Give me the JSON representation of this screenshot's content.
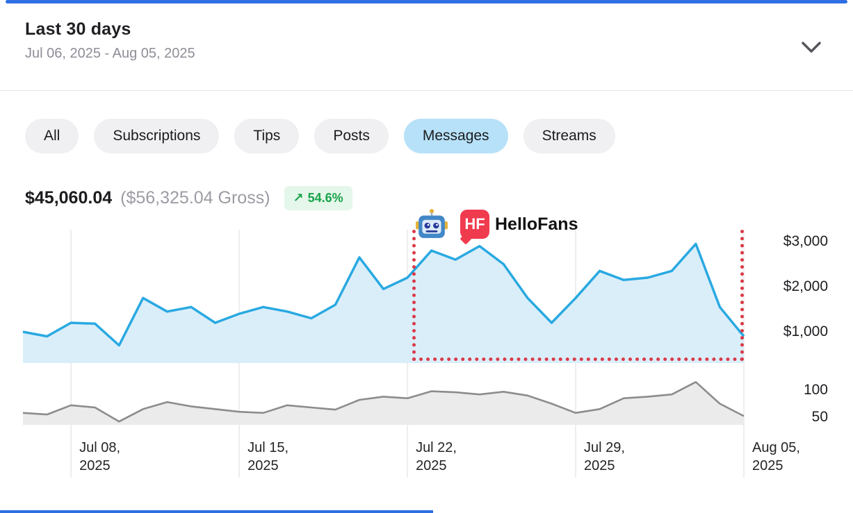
{
  "accent": {
    "top_bar_color": "#2e6fe3",
    "bottom_bar_color": "#2e6fe3"
  },
  "header": {
    "title": "Last 30 days",
    "date_range": "Jul 06, 2025 - Aug 05, 2025"
  },
  "filters": [
    {
      "label": "All",
      "active": false
    },
    {
      "label": "Subscriptions",
      "active": false
    },
    {
      "label": "Tips",
      "active": false
    },
    {
      "label": "Posts",
      "active": false
    },
    {
      "label": "Messages",
      "active": true
    },
    {
      "label": "Streams",
      "active": false
    }
  ],
  "summary": {
    "net_amount": "$45,060.04",
    "gross_amount": "($56,325.04 Gross)",
    "trend": {
      "arrow": "↗",
      "value": "54.6%"
    }
  },
  "watermark": {
    "brand_initials": "HF",
    "brand_name": "HelloFans",
    "brand_color": "#f03a4e"
  },
  "chart_data": {
    "type": "area",
    "title": "Messages earnings, last 30 days",
    "x_start": "Jul 06, 2025",
    "x_end": "Aug 05, 2025",
    "grid": true,
    "legend": "none",
    "x_ticks": [
      {
        "label_line1": "Jul 08,",
        "label_line2": "2025",
        "day_index": 2
      },
      {
        "label_line1": "Jul 15,",
        "label_line2": "2025",
        "day_index": 9
      },
      {
        "label_line1": "Jul 22,",
        "label_line2": "2025",
        "day_index": 16
      },
      {
        "label_line1": "Jul 29,",
        "label_line2": "2025",
        "day_index": 23
      },
      {
        "label_line1": "Aug 05,",
        "label_line2": "2025",
        "day_index": 30
      }
    ],
    "panels": [
      {
        "name": "daily-earnings-usd",
        "line_color": "#29a9e1",
        "fill_color": "#daeefa",
        "ylim": [
          0,
          3200
        ],
        "y_ticks": [
          {
            "label": "$3,000",
            "value": 3000
          },
          {
            "label": "$2,000",
            "value": 2000
          },
          {
            "label": "$1,000",
            "value": 1000
          }
        ],
        "values": [
          1000,
          900,
          1200,
          1180,
          700,
          1750,
          1450,
          1550,
          1200,
          1400,
          1550,
          1450,
          1300,
          1600,
          2650,
          1950,
          2200,
          2800,
          2600,
          2900,
          2500,
          1750,
          1200,
          1750,
          2350,
          2150,
          2200,
          2350,
          2950,
          1550,
          900
        ]
      },
      {
        "name": "daily-activity-count",
        "line_color": "#8c8c8c",
        "fill_color": "#ebebeb",
        "ylim": [
          0,
          130
        ],
        "y_ticks": [
          {
            "label": "100",
            "value": 100
          },
          {
            "label": "50",
            "value": 50
          }
        ],
        "values": [
          58,
          55,
          72,
          68,
          42,
          65,
          78,
          70,
          65,
          60,
          58,
          72,
          68,
          64,
          82,
          88,
          85,
          98,
          96,
          92,
          97,
          90,
          75,
          58,
          65,
          85,
          88,
          92,
          115,
          75,
          52
        ]
      }
    ],
    "annotation": {
      "shape": "dotted-rect",
      "color": "#d93a47",
      "from_day_index": 16,
      "to_day_index": 30
    }
  }
}
